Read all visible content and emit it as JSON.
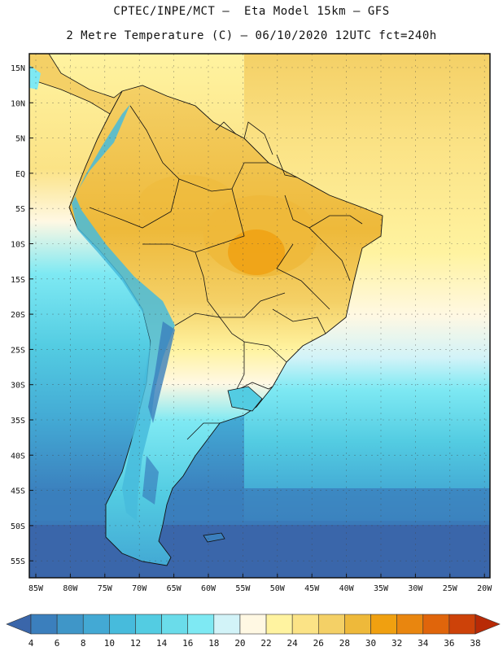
{
  "header": {
    "title_line1": "CPTEC/INPE/MCT –  Eta Model 15km – GFS",
    "title_line2": "2 Metre Temperature (C) – 06/10/2020 12UTC fct=240h"
  },
  "map": {
    "lat_labels": [
      "15N",
      "10N",
      "5N",
      "EQ",
      "5S",
      "10S",
      "15S",
      "20S",
      "25S",
      "30S",
      "35S",
      "40S",
      "45S",
      "50S",
      "55S"
    ],
    "lon_labels": [
      "85W",
      "80W",
      "75W",
      "70W",
      "65W",
      "60W",
      "55W",
      "50W",
      "45W",
      "40W",
      "35W",
      "30W",
      "25W",
      "20W"
    ]
  },
  "colorbar": {
    "ticks": [
      "4",
      "6",
      "8",
      "10",
      "12",
      "14",
      "16",
      "18",
      "20",
      "22",
      "24",
      "26",
      "28",
      "30",
      "32",
      "34",
      "36",
      "38"
    ],
    "colors": [
      "#3a66aa",
      "#3b7fbd",
      "#3f96c8",
      "#43a9d4",
      "#47bbdc",
      "#53cce2",
      "#6adcea",
      "#7ee9f3",
      "#d2f3f8",
      "#fff8e3",
      "#fff3a0",
      "#fbe386",
      "#f4d066",
      "#eeb93a",
      "#f0a010",
      "#e9860f",
      "#e0650b",
      "#cd4209",
      "#b82a06"
    ]
  }
}
